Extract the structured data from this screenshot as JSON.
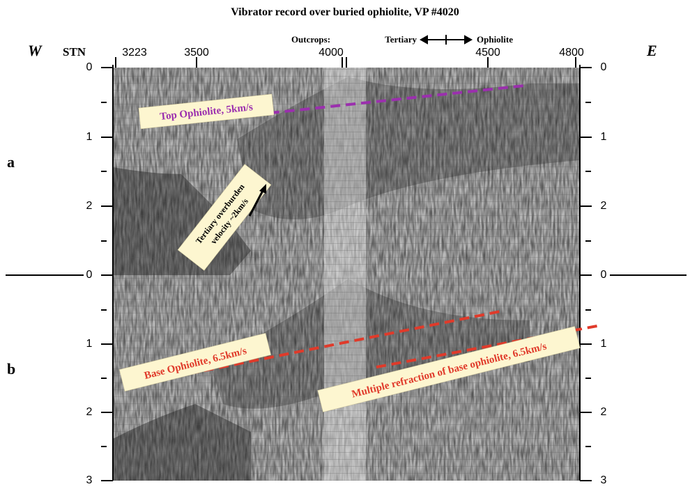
{
  "title": "Vibrator record over buried ophiolite, VP #4020",
  "directions": {
    "west": "W",
    "east": "E"
  },
  "station_axis": {
    "label": "STN",
    "ticks": [
      "3223",
      "3500",
      "4000",
      "4500",
      "4800"
    ]
  },
  "outcrops_label": "Outcrops:",
  "contact": {
    "left": "Tertiary",
    "right": "Ophiolite"
  },
  "panels": [
    {
      "label": "a",
      "time_ticks": [
        "0",
        "1",
        "2"
      ],
      "annotations": [
        "Top Ophiolite, 5km/s",
        "Tertiary overburden",
        "velocity ~2km/s"
      ]
    },
    {
      "label": "b",
      "time_ticks": [
        "0",
        "1",
        "2",
        "3"
      ],
      "annotations": [
        "Base Ophiolite, 6.5km/s",
        "Multiple refraction of base ophiolite, 6.5km/s"
      ]
    }
  ]
}
